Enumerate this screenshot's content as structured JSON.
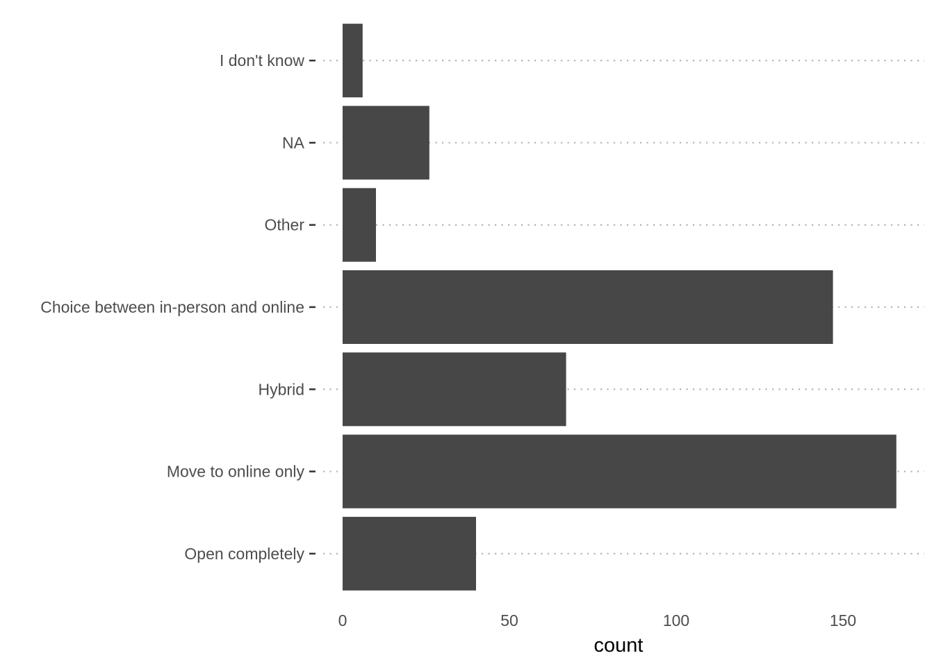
{
  "chart_data": {
    "type": "bar",
    "orientation": "horizontal",
    "categories": [
      "Open completely",
      "Move to online only",
      "Hybrid",
      "Choice between in-person and online",
      "Other",
      "NA",
      "I don't know"
    ],
    "values": [
      40,
      166,
      67,
      147,
      10,
      26,
      6
    ],
    "xlabel": "count",
    "ylabel": "",
    "xlim": [
      0,
      174
    ],
    "x_ticks": [
      0,
      50,
      100,
      150
    ],
    "x_tick_labels": [
      "0",
      "50",
      "100",
      "150"
    ],
    "grid": "horizontal dotted lines at each category",
    "bar_color": "#474747",
    "grid_color": "#b3b3b3",
    "text_color": "#4d4d4d"
  }
}
